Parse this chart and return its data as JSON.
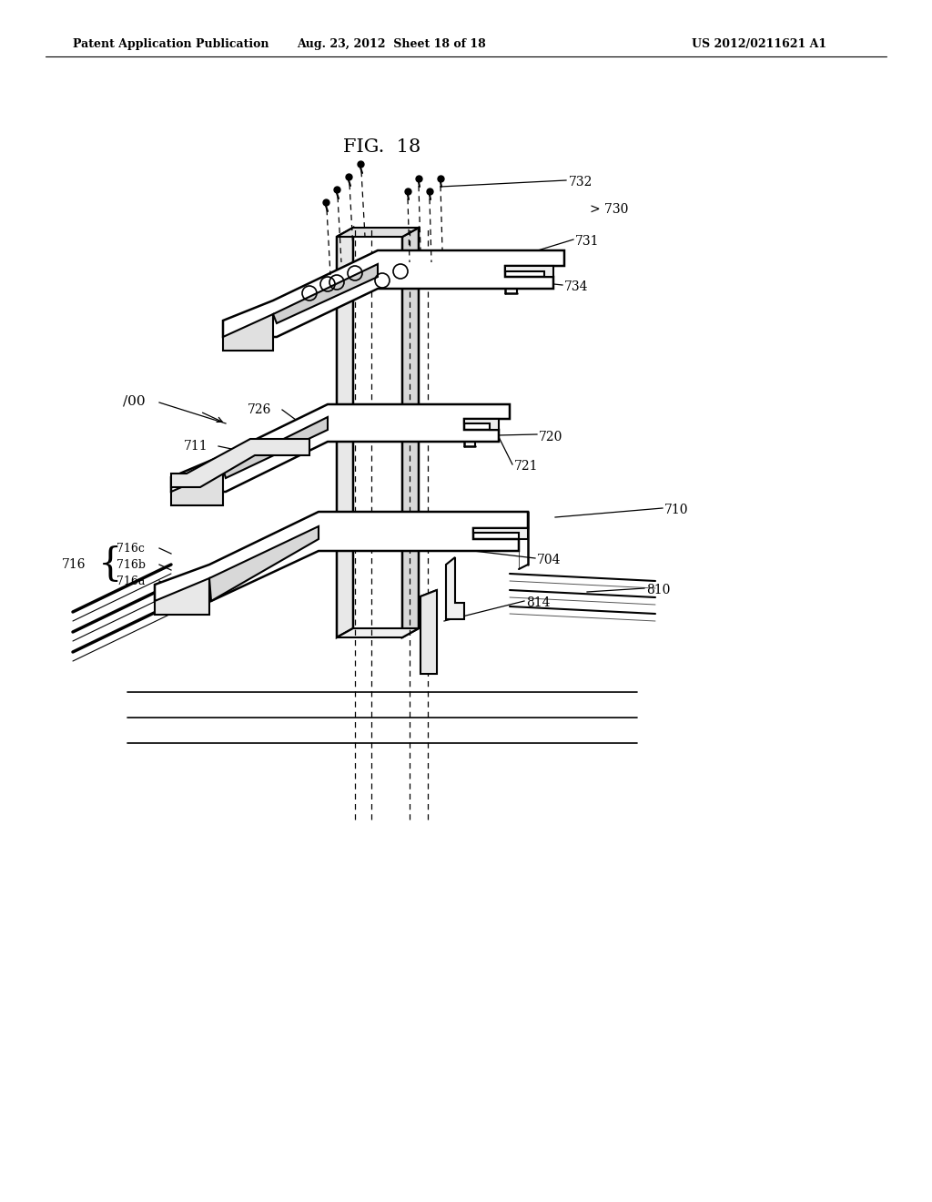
{
  "title": "FIG.  18",
  "header_left": "Patent Application Publication",
  "header_mid": "Aug. 23, 2012  Sheet 18 of 18",
  "header_right": "US 2012/0211621 A1",
  "bg_color": "#ffffff",
  "line_color": "#000000",
  "fontsize_header": 9,
  "fontsize_title": 15,
  "fontsize_label": 10
}
